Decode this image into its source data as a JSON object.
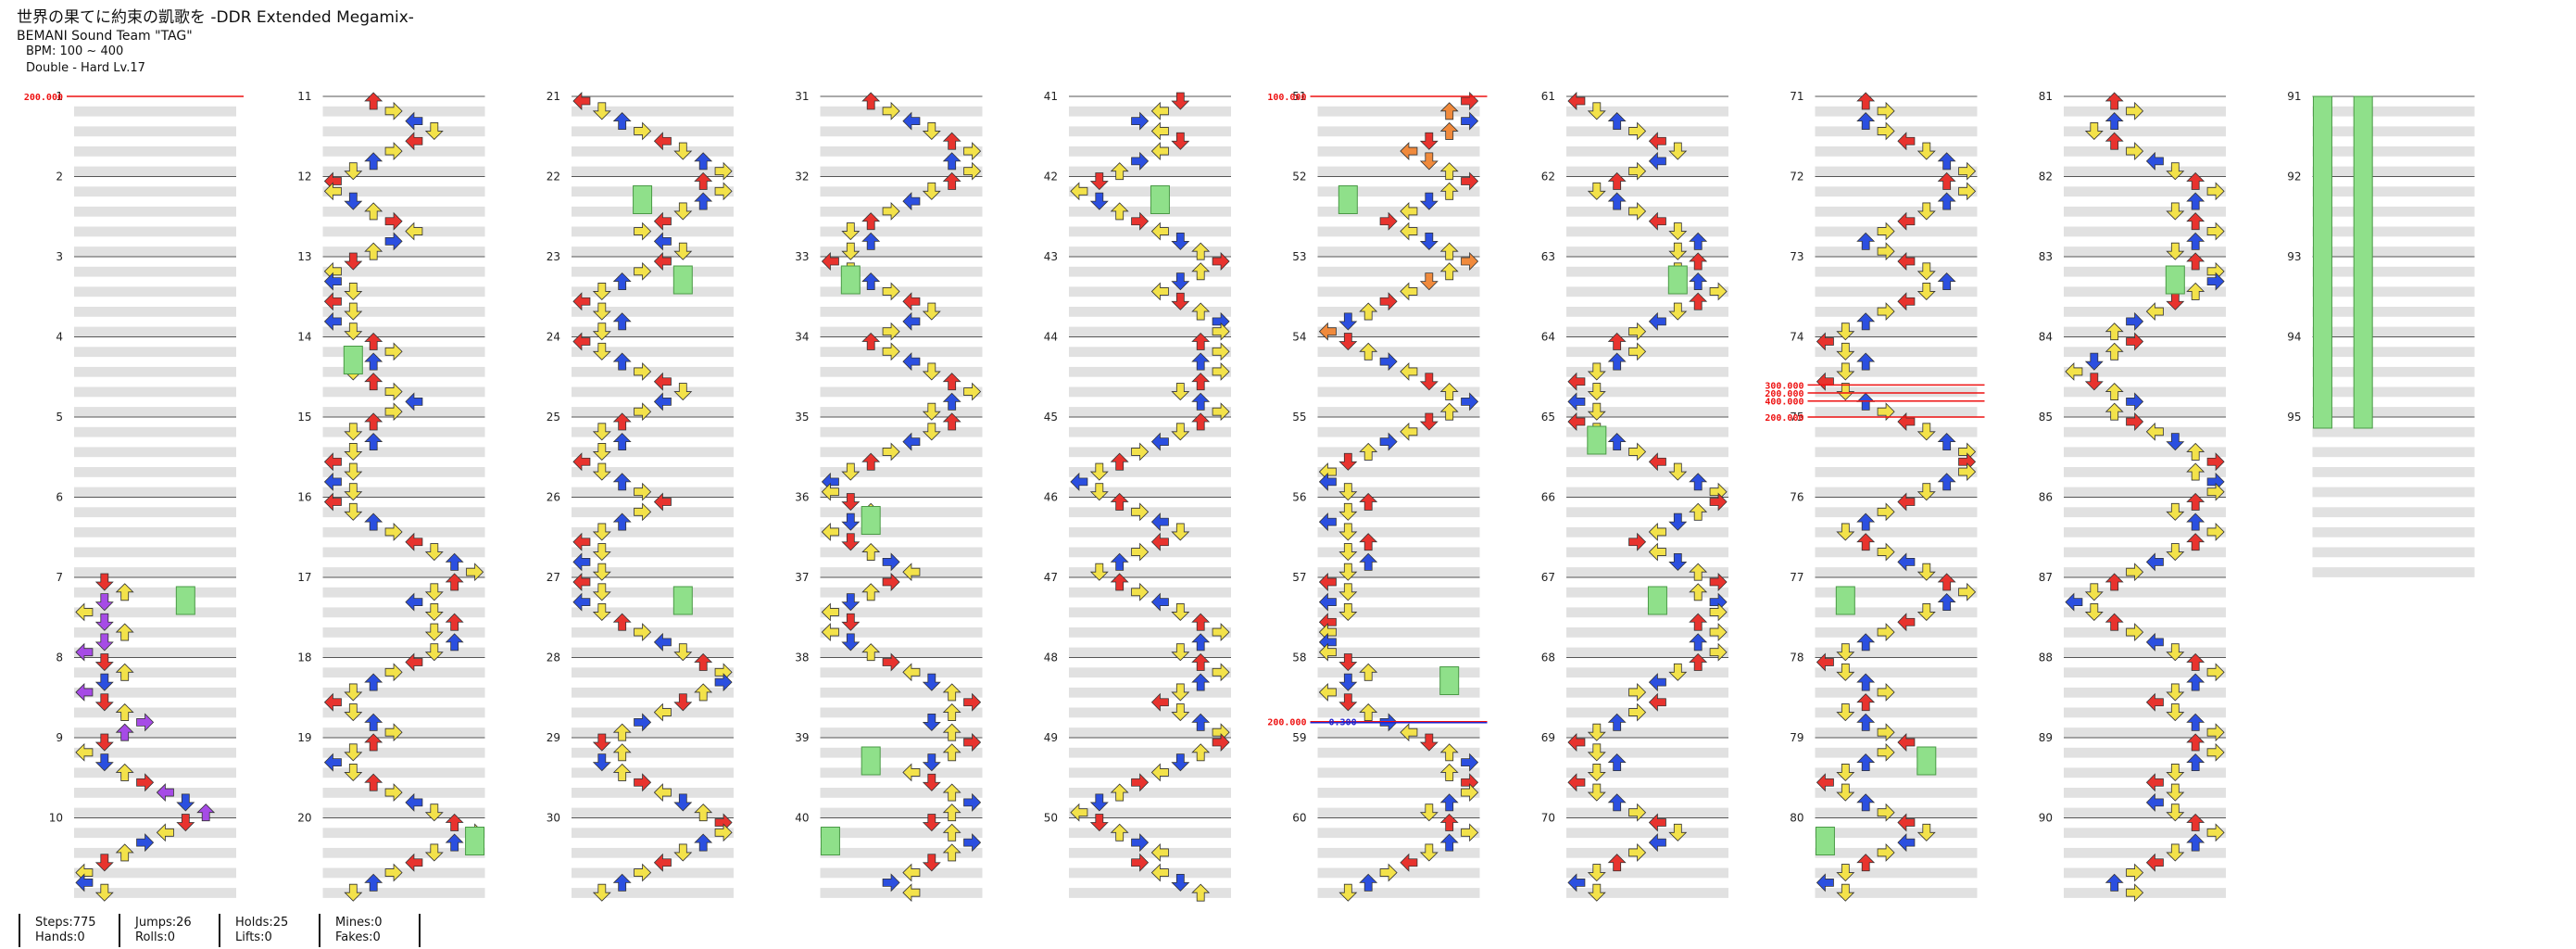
{
  "header": {
    "title": "世界の果てに約束の凱歌を -DDR Extended Megamix-",
    "artist": "BEMANI Sound Team \"TAG\"",
    "bpm": "BPM: 100 ~ 400",
    "difficulty": "Double - Hard Lv.17"
  },
  "measures": {
    "first": 1,
    "last": 95,
    "per_column": 10,
    "labeled_every": 1
  },
  "bpm_changes": [
    {
      "measure": 1,
      "label": "200.000"
    },
    {
      "measure": 51,
      "label": "100.000"
    },
    {
      "measure": 74.6,
      "label": "300.000"
    },
    {
      "measure": 74.7,
      "label": "200.000"
    },
    {
      "measure": 74.8,
      "label": "400.000"
    },
    {
      "measure": 75,
      "label": "200.000"
    },
    {
      "measure": 58.8,
      "label": "200.000"
    }
  ],
  "scroll_changes": [
    {
      "measure": 58.8,
      "label": "0.300"
    }
  ],
  "arrow_colors": {
    "red": "#e8332e",
    "blue": "#2b4fe0",
    "yellow": "#f3e24a",
    "purple": "#a64be6",
    "orange": "#f08a3c",
    "green_hold": "#8fe08a"
  },
  "stats": {
    "steps": "Steps:775",
    "hands": "Hands:0",
    "jumps": "Jumps:26",
    "rolls": "Rolls:0",
    "holds": "Holds:25",
    "lifts": "Lifts:0",
    "mines": "Mines:0",
    "fakes": "Fakes:0"
  }
}
